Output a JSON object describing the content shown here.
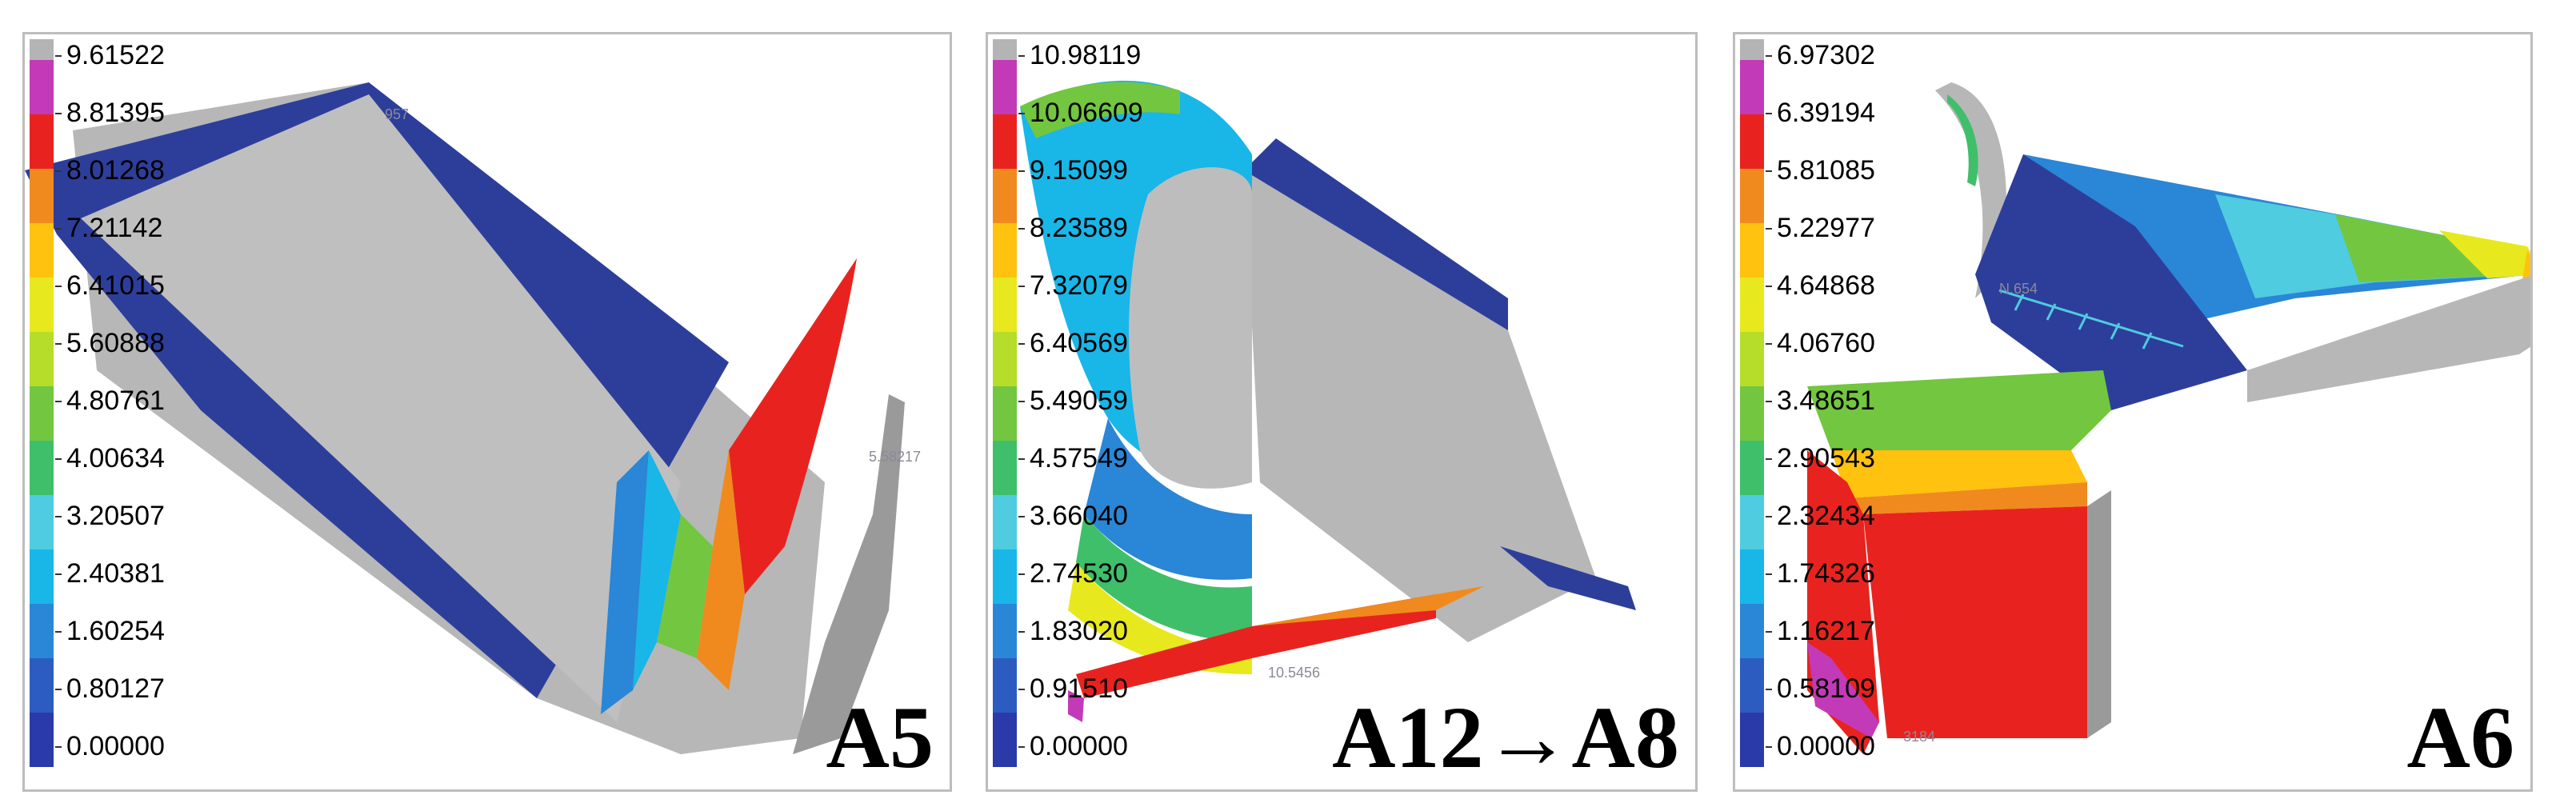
{
  "colors": {
    "max": "#b4b4b4",
    "scale": [
      "#2a3aa8",
      "#2c5cbf",
      "#2a86d6",
      "#19b6e8",
      "#4fcce0",
      "#3fbf6a",
      "#73c640",
      "#b6dd2a",
      "#e8e81e",
      "#ffc20e",
      "#f08a1e",
      "#e8231f",
      "#c23ab8"
    ],
    "geometry_blue": "#2d3e9a",
    "geometry_gray": "#b7b7b7"
  },
  "panels": [
    {
      "case_label": "A5",
      "legend_values": [
        "9.61522",
        "8.81395",
        "8.01268",
        "7.21142",
        "6.41015",
        "5.60888",
        "4.80761",
        "4.00634",
        "3.20507",
        "2.40381",
        "1.60254",
        "0.80127",
        "0.00000"
      ],
      "probe_labels": [
        "957",
        "5.58217"
      ]
    },
    {
      "case_label": "A12→A8",
      "legend_values": [
        "10.98119",
        "10.06609",
        "9.15099",
        "8.23589",
        "7.32079",
        "6.40569",
        "5.49059",
        "4.57549",
        "3.66040",
        "2.74530",
        "1.83020",
        "0.91510",
        "0.00000"
      ],
      "probe_labels": [
        "10.5456"
      ]
    },
    {
      "case_label": "A6",
      "legend_values": [
        "6.97302",
        "6.39194",
        "5.81085",
        "5.22977",
        "4.64868",
        "4.06760",
        "3.48651",
        "2.90543",
        "2.32434",
        "1.74326",
        "1.16217",
        "0.58109",
        "0.00000"
      ],
      "probe_labels": [
        "N.654",
        "3184"
      ]
    }
  ]
}
